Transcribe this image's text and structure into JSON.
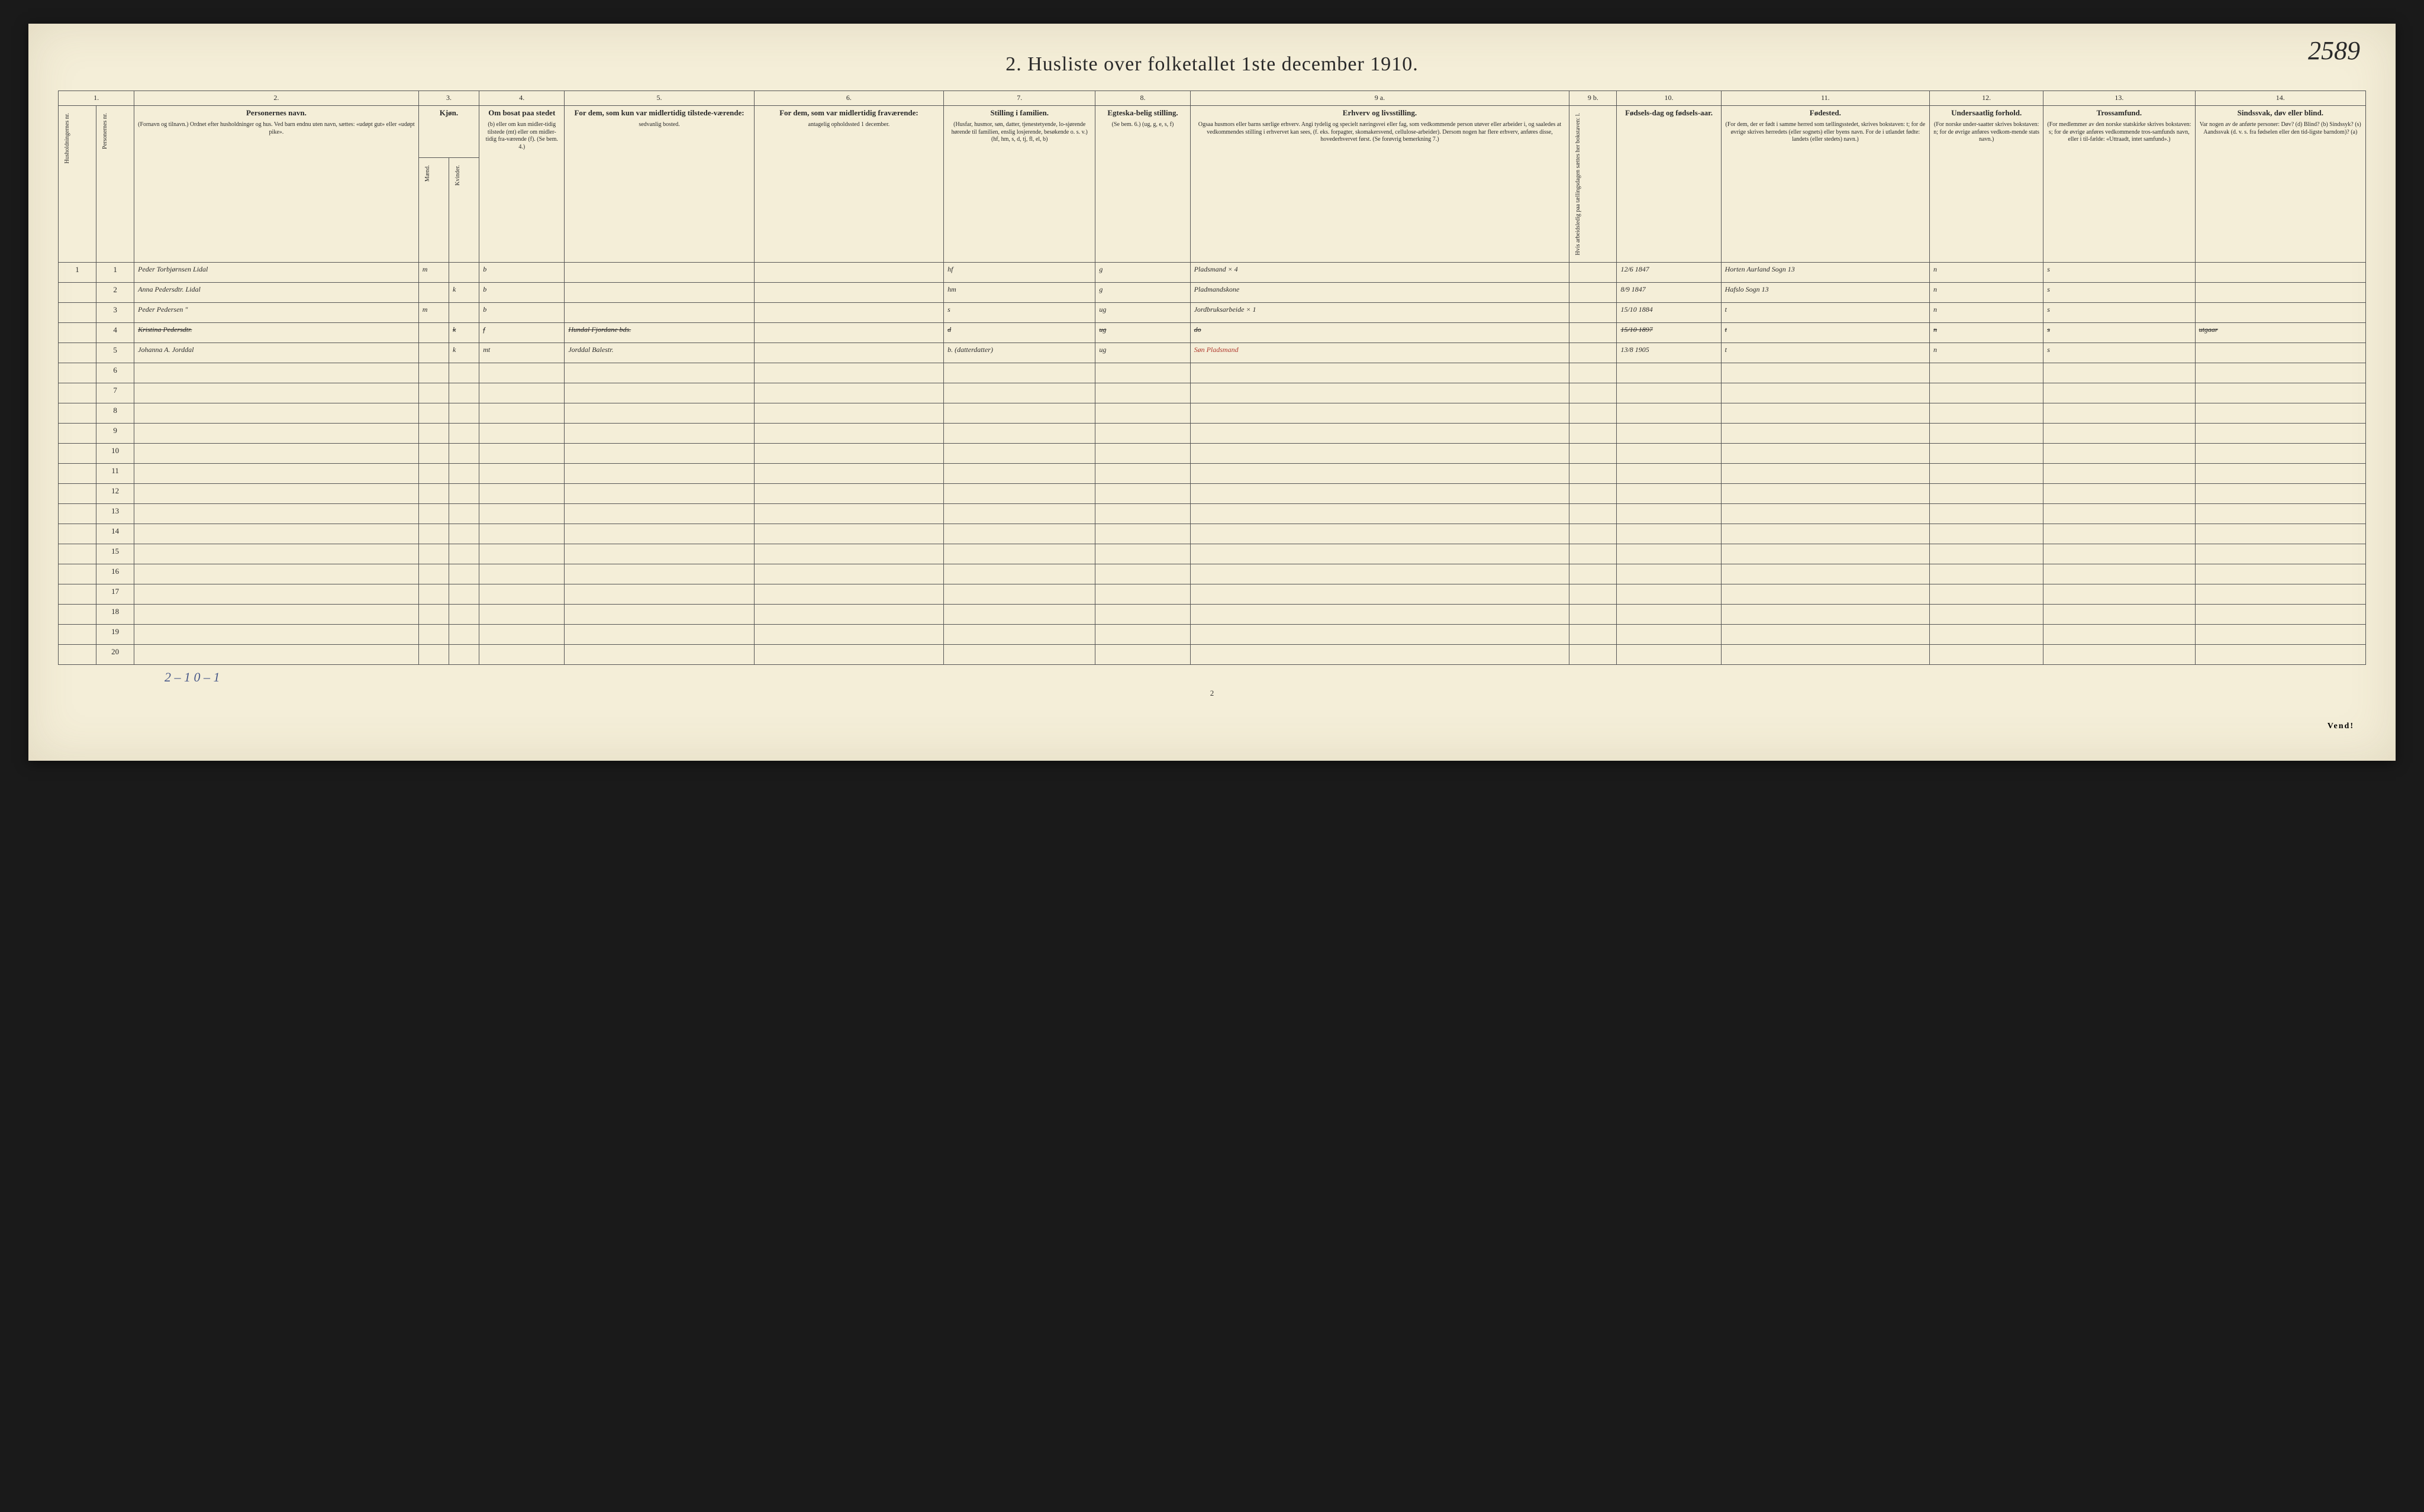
{
  "page_number_handwritten": "2589",
  "title": "2.  Husliste over folketallet 1ste december 1910.",
  "column_numbers": [
    "1.",
    "2.",
    "3.",
    "4.",
    "5.",
    "6.",
    "7.",
    "8.",
    "9 a.",
    "9 b.",
    "10.",
    "11.",
    "12.",
    "13.",
    "14."
  ],
  "columns": {
    "c1a": {
      "vert": "Husholdningernes nr."
    },
    "c1b": {
      "vert": "Personernes nr."
    },
    "c2": {
      "main": "Personernes navn.",
      "sub": "(Fornavn og tilnavn.)\nOrdnet efter husholdninger og hus.\nVed barn endnu uten navn, sættes: «udøpt gut» eller «udøpt pike»."
    },
    "c3": {
      "main": "Kjøn.",
      "sub_a": "Mænd.",
      "sub_b": "Kvinder.",
      "foot": "m. | k."
    },
    "c4": {
      "main": "Om bosat paa stedet",
      "sub": "(b) eller om kun midler-tidig tilstede (mt) eller om midler-tidig fra-værende (f).\n(Se bem. 4.)"
    },
    "c5": {
      "main": "For dem, som kun var midlertidig tilstede-værende:",
      "sub": "sedvanlig bosted."
    },
    "c6": {
      "main": "For dem, som var midlertidig fraværende:",
      "sub": "antagelig opholdssted 1 december."
    },
    "c7": {
      "main": "Stilling i familien.",
      "sub": "(Husfar, husmor, søn, datter, tjenestetyende, lo-sjørende hørende til familien, enslig losjerende, besøkende o. s. v.)\n(hf, hm, s, d, tj, fl, el, b)"
    },
    "c8": {
      "main": "Egteska-belig stilling.",
      "sub": "(Se bem. 6.)\n(ug, g, e, s, f)"
    },
    "c9a": {
      "main": "Erhverv og livsstilling.",
      "sub": "Ogsaa husmors eller barns særlige erhverv.\nAngi tydelig og specielt næringsvei eller fag, som vedkommende person utøver eller arbeider i, og saaledes at vedkommendes stilling i erhvervet kan sees, (f. eks. forpagter, skomakersvend, cellulose-arbeider). Dersom nogen har flere erhverv, anføres disse, hovederhvervet først.\n(Se forøvrig bemerkning 7.)"
    },
    "c9b": {
      "vert": "Hvis arbeidsledig paa tællingsdagen sættes her bokstaven: l."
    },
    "c10": {
      "main": "Fødsels-dag og fødsels-aar."
    },
    "c11": {
      "main": "Fødested.",
      "sub": "(For dem, der er født i samme herred som tællingsstedet, skrives bokstaven: t; for de øvrige skrives herredets (eller sognets) eller byens navn.\nFor de i utlandet fødte: landets (eller stedets) navn.)"
    },
    "c12": {
      "main": "Undersaatlig forhold.",
      "sub": "(For norske under-saatter skrives bokstaven: n; for de øvrige anføres vedkom-mende stats navn.)"
    },
    "c13": {
      "main": "Trossamfund.",
      "sub": "(For medlemmer av den norske statskirke skrives bokstaven: s; for de øvrige anføres vedkommende tros-samfunds navn, eller i til-fælde: «Uttraadt, intet samfund».)"
    },
    "c14": {
      "main": "Sindssvak, døv eller blind.",
      "sub": "Var nogen av de anførte personer:\nDøv?      (d)\nBlind?    (b)\nSindssyk? (s)\nAandssvak (d. v. s. fra fødselen eller den tid-ligste barndom)? (a)"
    }
  },
  "rows": [
    {
      "hh": "1",
      "pn": "1",
      "name": "Peder Torbjørnsen Lidal",
      "sex": "m",
      "res": "b",
      "away": "",
      "temp": "",
      "fam": "hf",
      "mar": "g",
      "occ": "Pladsmand  × 4",
      "led": "",
      "born": "12/6 1847",
      "birthplace": "Horten  Aurland Sogn 13",
      "nat": "n",
      "rel": "s",
      "dis": ""
    },
    {
      "hh": "",
      "pn": "2",
      "name": "Anna Pedersdtr. Lidal",
      "sex": "k",
      "res": "b",
      "away": "",
      "temp": "",
      "fam": "hm",
      "mar": "g",
      "occ": "Pladmandskone",
      "led": "",
      "born": "8/9 1847",
      "birthplace": "Hafslo Sogn 13",
      "nat": "n",
      "rel": "s",
      "dis": ""
    },
    {
      "hh": "",
      "pn": "3",
      "name": "Peder Pedersen    \"",
      "sex": "m",
      "res": "b",
      "away": "",
      "temp": "",
      "fam": "s",
      "mar": "ug",
      "occ": "Jordbruksarbeide × 1",
      "led": "",
      "born": "15/10 1884",
      "birthplace": "t",
      "nat": "n",
      "rel": "s",
      "dis": ""
    },
    {
      "hh": "",
      "pn": "4",
      "name": "Kristina Pedersdtr.",
      "sex": "k",
      "res": "f",
      "away": "Hundal Fjordane bds.",
      "temp": "",
      "fam": "d",
      "mar": "ug",
      "occ": "do",
      "led": "",
      "born": "15/10 1897",
      "birthplace": "t",
      "nat": "n",
      "rel": "s",
      "dis": "utgaar",
      "struck": true
    },
    {
      "hh": "",
      "pn": "5",
      "name": "Johanna A. Jorddal",
      "sex": "k",
      "res": "mt",
      "away": "Jorddal Balestr.",
      "temp": "",
      "fam": "b. (datterdatter)",
      "mar": "ug",
      "occ": "",
      "occ_red": "Søn Pladsmand",
      "led": "",
      "born": "13/8 1905",
      "birthplace": "t",
      "nat": "n",
      "rel": "s",
      "dis": ""
    }
  ],
  "empty_rows": 15,
  "footer_tally": "2 – 1    0 – 1",
  "page_foot_num": "2",
  "vend": "Vend!",
  "colors": {
    "paper": "#f4eed8",
    "ink": "#2a2a2a",
    "rule": "#555",
    "handwriting": "#333",
    "red_ink": "#b03a2e",
    "blue_ink": "#4a5a8a",
    "background": "#1a1a1a"
  },
  "col_widths_pct": [
    2,
    2,
    15,
    1.6,
    1.6,
    4.5,
    10,
    10,
    8,
    5,
    20,
    2.5,
    5.5,
    11,
    6,
    8,
    9
  ],
  "fonts": {
    "title_pt": 34,
    "header_main_pt": 13,
    "header_sub_pt": 10,
    "body_print_pt": 13,
    "handwriting_pt": 20,
    "page_num_pt": 44
  }
}
